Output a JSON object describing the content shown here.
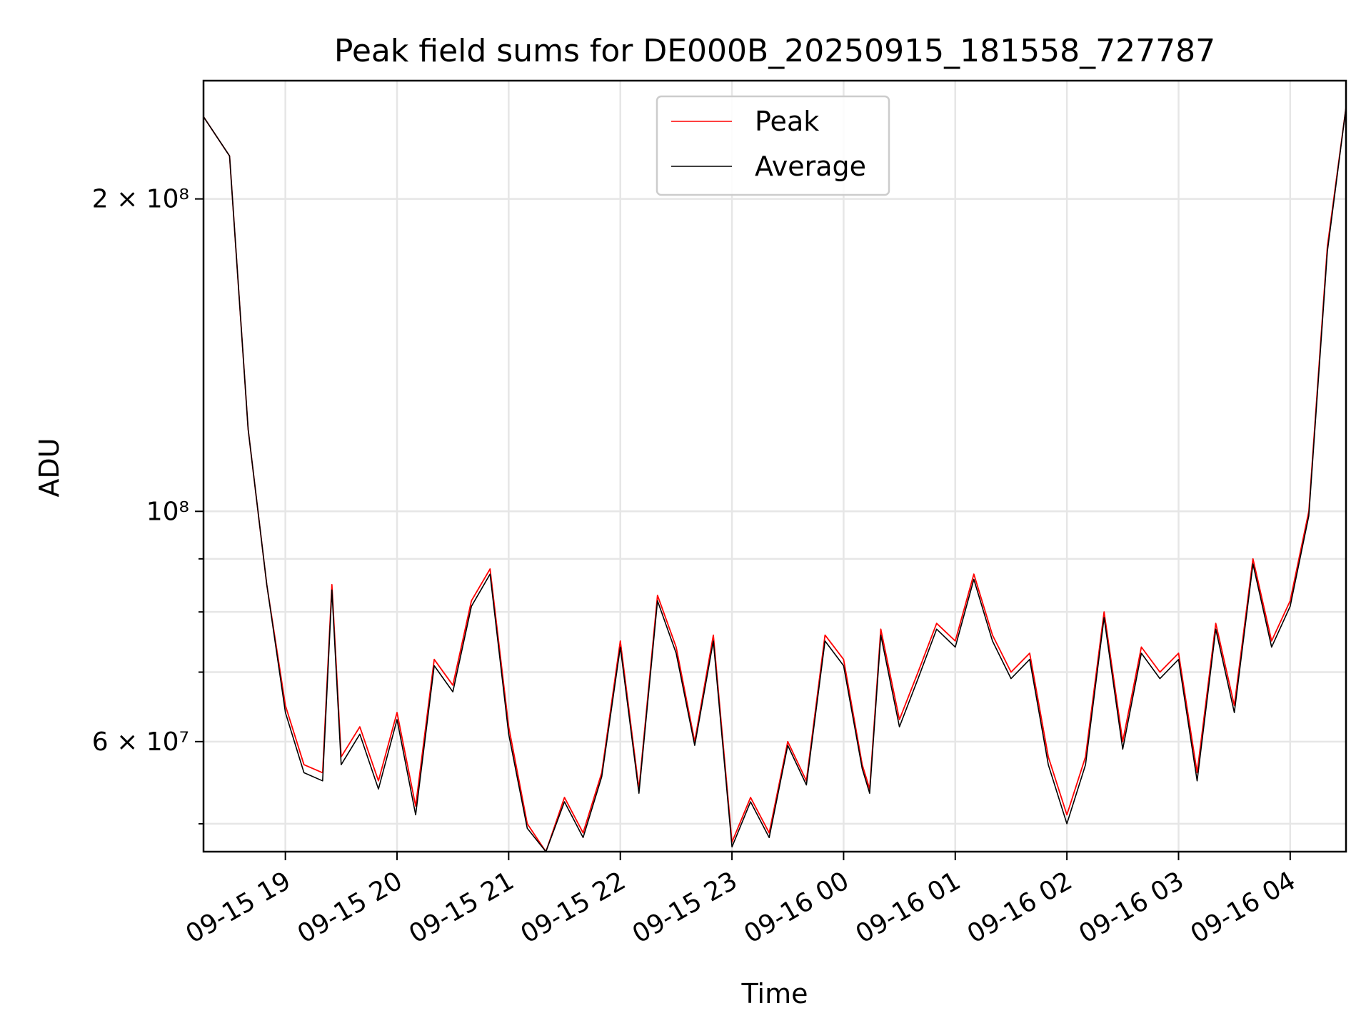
{
  "chart_data": {
    "type": "line",
    "title": "Peak field sums for DE000B_20250915_181558_727787",
    "xlabel": "Time",
    "ylabel": "ADU",
    "yscale": "log",
    "ylim": [
      47000000,
      260000000
    ],
    "xlim": [
      "2025-09-15 18:16",
      "2025-09-16 04:30"
    ],
    "grid": true,
    "legend_position": "upper center",
    "x_ticks": [
      "09-15 19",
      "09-15 20",
      "09-15 21",
      "09-15 22",
      "09-15 23",
      "09-16 00",
      "09-16 01",
      "09-16 02",
      "09-16 03",
      "09-16 04"
    ],
    "y_ticks": [
      {
        "value": 60000000,
        "label": "6 × 10⁷"
      },
      {
        "value": 100000000,
        "label": "10⁸"
      },
      {
        "value": 200000000,
        "label": "2 × 10⁸"
      }
    ],
    "series": [
      {
        "name": "Peak",
        "color": "#ff0000",
        "x": [
          "2025-09-15 18:16",
          "2025-09-15 18:30",
          "2025-09-15 18:40",
          "2025-09-15 18:50",
          "2025-09-15 19:00",
          "2025-09-15 19:10",
          "2025-09-15 19:20",
          "2025-09-15 19:25",
          "2025-09-15 19:30",
          "2025-09-15 19:40",
          "2025-09-15 19:50",
          "2025-09-15 20:00",
          "2025-09-15 20:10",
          "2025-09-15 20:20",
          "2025-09-15 20:30",
          "2025-09-15 20:40",
          "2025-09-15 20:50",
          "2025-09-15 21:00",
          "2025-09-15 21:10",
          "2025-09-15 21:20",
          "2025-09-15 21:30",
          "2025-09-15 21:40",
          "2025-09-15 21:50",
          "2025-09-15 22:00",
          "2025-09-15 22:10",
          "2025-09-15 22:20",
          "2025-09-15 22:30",
          "2025-09-15 22:40",
          "2025-09-15 22:50",
          "2025-09-15 23:00",
          "2025-09-15 23:10",
          "2025-09-15 23:20",
          "2025-09-15 23:30",
          "2025-09-15 23:40",
          "2025-09-15 23:50",
          "2025-09-16 00:00",
          "2025-09-16 00:10",
          "2025-09-16 00:14",
          "2025-09-16 00:20",
          "2025-09-16 00:30",
          "2025-09-16 00:40",
          "2025-09-16 00:50",
          "2025-09-16 01:00",
          "2025-09-16 01:10",
          "2025-09-16 01:20",
          "2025-09-16 01:30",
          "2025-09-16 01:40",
          "2025-09-16 01:50",
          "2025-09-16 02:00",
          "2025-09-16 02:10",
          "2025-09-16 02:20",
          "2025-09-16 02:30",
          "2025-09-16 02:40",
          "2025-09-16 02:50",
          "2025-09-16 03:00",
          "2025-09-16 03:10",
          "2025-09-16 03:20",
          "2025-09-16 03:30",
          "2025-09-16 03:40",
          "2025-09-16 03:50",
          "2025-09-16 04:00",
          "2025-09-16 04:10",
          "2025-09-16 04:20",
          "2025-09-16 04:30"
        ],
        "values": [
          240000000,
          220000000,
          120000000,
          85000000,
          65000000,
          57000000,
          56000000,
          85000000,
          58000000,
          62000000,
          55000000,
          64000000,
          52000000,
          72000000,
          68000000,
          82000000,
          88000000,
          62000000,
          50000000,
          47000000,
          53000000,
          49000000,
          56000000,
          75000000,
          54000000,
          83000000,
          74000000,
          60000000,
          76000000,
          48000000,
          53000000,
          49000000,
          60000000,
          55000000,
          76000000,
          72000000,
          57000000,
          54000000,
          77000000,
          63000000,
          70000000,
          78000000,
          75000000,
          87000000,
          76000000,
          70000000,
          73000000,
          58000000,
          51000000,
          58000000,
          80000000,
          60000000,
          74000000,
          70000000,
          73000000,
          56000000,
          78000000,
          65000000,
          90000000,
          75000000,
          82000000,
          100000000,
          180000000,
          245000000
        ]
      },
      {
        "name": "Average",
        "color": "#000000",
        "x": [
          "2025-09-15 18:16",
          "2025-09-15 18:30",
          "2025-09-15 18:40",
          "2025-09-15 18:50",
          "2025-09-15 19:00",
          "2025-09-15 19:10",
          "2025-09-15 19:20",
          "2025-09-15 19:25",
          "2025-09-15 19:30",
          "2025-09-15 19:40",
          "2025-09-15 19:50",
          "2025-09-15 20:00",
          "2025-09-15 20:10",
          "2025-09-15 20:20",
          "2025-09-15 20:30",
          "2025-09-15 20:40",
          "2025-09-15 20:50",
          "2025-09-15 21:00",
          "2025-09-15 21:10",
          "2025-09-15 21:20",
          "2025-09-15 21:30",
          "2025-09-15 21:40",
          "2025-09-15 21:50",
          "2025-09-15 22:00",
          "2025-09-15 22:10",
          "2025-09-15 22:20",
          "2025-09-15 22:30",
          "2025-09-15 22:40",
          "2025-09-15 22:50",
          "2025-09-15 23:00",
          "2025-09-15 23:10",
          "2025-09-15 23:20",
          "2025-09-15 23:30",
          "2025-09-15 23:40",
          "2025-09-15 23:50",
          "2025-09-16 00:00",
          "2025-09-16 00:10",
          "2025-09-16 00:14",
          "2025-09-16 00:20",
          "2025-09-16 00:30",
          "2025-09-16 00:40",
          "2025-09-16 00:50",
          "2025-09-16 01:00",
          "2025-09-16 01:10",
          "2025-09-16 01:20",
          "2025-09-16 01:30",
          "2025-09-16 01:40",
          "2025-09-16 01:50",
          "2025-09-16 02:00",
          "2025-09-16 02:10",
          "2025-09-16 02:20",
          "2025-09-16 02:30",
          "2025-09-16 02:40",
          "2025-09-16 02:50",
          "2025-09-16 03:00",
          "2025-09-16 03:10",
          "2025-09-16 03:20",
          "2025-09-16 03:30",
          "2025-09-16 03:40",
          "2025-09-16 03:50",
          "2025-09-16 04:00",
          "2025-09-16 04:10",
          "2025-09-16 04:20",
          "2025-09-16 04:30"
        ],
        "values": [
          240000000,
          220000000,
          120000000,
          85000000,
          64000000,
          56000000,
          55000000,
          84000000,
          57000000,
          61000000,
          54000000,
          63000000,
          51000000,
          71000000,
          67000000,
          81000000,
          87000000,
          61000000,
          49500000,
          47000000,
          52500000,
          48500000,
          55500000,
          74000000,
          53500000,
          82000000,
          73000000,
          59500000,
          75000000,
          47500000,
          52500000,
          48500000,
          59500000,
          54500000,
          75000000,
          71000000,
          56500000,
          53500000,
          76000000,
          62000000,
          69000000,
          77000000,
          74000000,
          86000000,
          75000000,
          69000000,
          72000000,
          57000000,
          50000000,
          57000000,
          79000000,
          59000000,
          73000000,
          69000000,
          72000000,
          55000000,
          77000000,
          64000000,
          89000000,
          74000000,
          81000000,
          99000000,
          178000000,
          245000000
        ]
      }
    ]
  }
}
